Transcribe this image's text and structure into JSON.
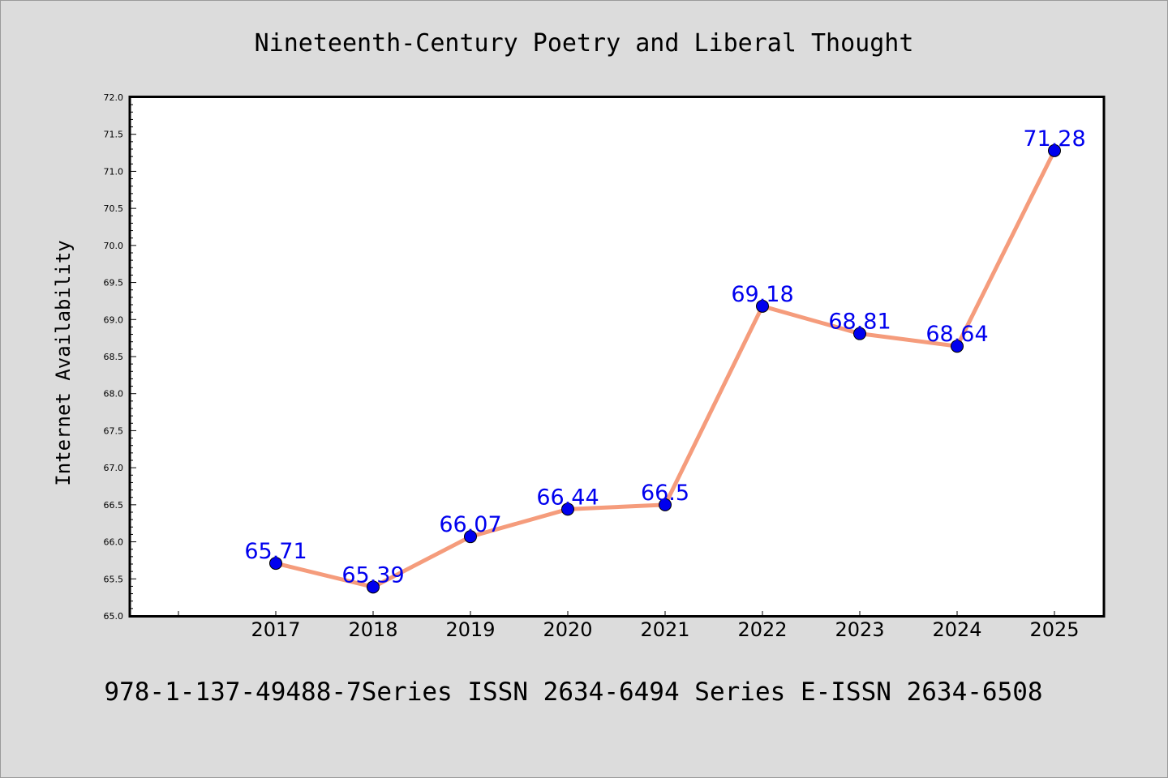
{
  "chart_data": {
    "type": "line",
    "title": "Nineteenth-Century Poetry and Liberal Thought",
    "xlabel": "",
    "ylabel": "Internet Availability",
    "categories": [
      "2017",
      "2018",
      "2019",
      "2020",
      "2021",
      "2022",
      "2023",
      "2024",
      "2025"
    ],
    "series": [
      {
        "values": [
          65.71,
          65.39,
          66.07,
          66.44,
          66.5,
          69.18,
          68.81,
          68.64,
          71.28
        ],
        "data_labels": [
          "65.71",
          "65.39",
          "66.07",
          "66.44",
          "66.5",
          "69.18",
          "68.81",
          "68.64",
          "71.28"
        ],
        "line_color": "#f59c7c",
        "marker_color": "#0000ee",
        "label_color": "#0000ee"
      }
    ],
    "ylim": [
      65.0,
      72.0
    ],
    "yticks": [
      "65.0",
      "65.5",
      "66.0",
      "66.5",
      "67.0",
      "67.5",
      "68.0",
      "68.5",
      "69.0",
      "69.5",
      "70.0",
      "70.5",
      "71.0",
      "71.5",
      "72.0"
    ],
    "grid": false,
    "legend": "none"
  },
  "footer": {
    "text": "978-1-137-49488-7Series ISSN 2634-6494 Series E-ISSN 2634-6508"
  },
  "colors": {
    "background": "#dcdcdc",
    "plot_background": "#ffffff",
    "axes": "#000000"
  }
}
